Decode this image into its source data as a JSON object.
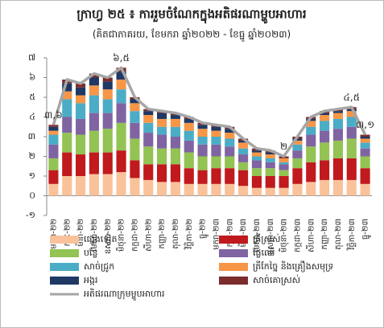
{
  "chart_data": {
    "type": "stacked-bar-line",
    "title": "ក្រាហ្វ ២៥ ៖ ការរួមចំណែកក្នុងអតិផរណាម្ហូបអាហារ",
    "subtitle": "(គិតជាភាគរយ, ខែមករា ឆ្នាំ២០២២ - ខែធ្នូ ឆ្នាំ២០២៣)",
    "categories": [
      "មករា-២២",
      "កុម្ភៈ-២២",
      "មីនា-២២",
      "មេសា-២២",
      "ឧសភា-២២",
      "មិថុនា-២២",
      "កក្កដា-២២",
      "សីហា-២២",
      "កញ្ញា-២២",
      "តុលា-២២",
      "វិច្ឆិកា-២២",
      "ធ្នូ-២២",
      "មករា-២៣",
      "កុម្ភៈ-២៣",
      "មីនា-២៣",
      "មេសា-២៣",
      "ឧសភា-២៣",
      "មិថុនា-២៣",
      "កក្កដា-២៣",
      "សីហា-២៣",
      "កញ្ញា-២៣",
      "តុលា-២៣",
      "វិច្ឆិកា-២៣",
      "ធ្នូ-២៣"
    ],
    "series": [
      {
        "name": "ផ្សេងទៀត",
        "color": "#f9c29a",
        "values": [
          0.6,
          1.0,
          1.0,
          1.1,
          1.1,
          1.2,
          0.9,
          0.8,
          0.7,
          0.7,
          0.6,
          0.6,
          0.6,
          0.6,
          0.5,
          0.4,
          0.4,
          0.4,
          0.6,
          0.7,
          0.8,
          0.8,
          0.8,
          0.6
        ]
      },
      {
        "name": "ត្រីស្រស់",
        "color": "#c0191e",
        "values": [
          0.7,
          1.2,
          1.1,
          1.1,
          1.1,
          1.1,
          0.9,
          0.8,
          0.9,
          0.9,
          0.8,
          0.7,
          0.8,
          0.8,
          0.8,
          0.6,
          0.6,
          0.6,
          0.8,
          1.0,
          1.0,
          1.1,
          1.1,
          0.8
        ]
      },
      {
        "name": "បន្លែ",
        "color": "#92c353",
        "values": [
          0.6,
          1.0,
          1.0,
          1.1,
          1.2,
          1.4,
          1.1,
          0.9,
          0.8,
          0.8,
          0.8,
          0.7,
          0.6,
          0.6,
          0.4,
          0.4,
          0.4,
          0.3,
          0.5,
          0.8,
          0.9,
          0.9,
          1.0,
          0.6
        ]
      },
      {
        "name": "ផ្លែឈើ",
        "color": "#8064a2",
        "values": [
          0.7,
          0.8,
          0.8,
          0.9,
          0.8,
          1.0,
          0.8,
          0.7,
          0.7,
          0.6,
          0.6,
          0.6,
          0.6,
          0.5,
          0.4,
          0.4,
          0.3,
          0.3,
          0.4,
          0.6,
          0.6,
          0.6,
          0.6,
          0.4
        ]
      },
      {
        "name": "សាច់ជ្រូក",
        "color": "#4bacc6",
        "values": [
          0.5,
          0.9,
          0.8,
          0.9,
          0.7,
          0.7,
          0.6,
          0.5,
          0.4,
          0.5,
          0.5,
          0.4,
          0.4,
          0.4,
          0.3,
          0.2,
          0.2,
          0.1,
          0.3,
          0.4,
          0.5,
          0.5,
          0.5,
          0.3
        ]
      },
      {
        "name": "ត្រីកែច្នៃ និងគ្រឿងសមុទ្រ",
        "color": "#f79646",
        "values": [
          0.2,
          0.4,
          0.4,
          0.5,
          0.5,
          0.5,
          0.4,
          0.4,
          0.4,
          0.4,
          0.4,
          0.4,
          0.3,
          0.3,
          0.3,
          0.2,
          0.2,
          0.2,
          0.2,
          0.3,
          0.3,
          0.3,
          0.3,
          0.2
        ]
      },
      {
        "name": "អង្ករ",
        "color": "#1f3864",
        "values": [
          0.2,
          0.4,
          0.4,
          0.4,
          0.4,
          0.4,
          0.2,
          0.2,
          0.3,
          0.2,
          0.2,
          0.2,
          0.2,
          0.2,
          0.1,
          0.1,
          0.1,
          0.0,
          0.1,
          0.1,
          0.1,
          0.1,
          0.1,
          0.1
        ]
      },
      {
        "name": "សាច់គោស្រស់",
        "color": "#7b2c2c",
        "values": [
          0.1,
          0.2,
          0.2,
          0.2,
          0.2,
          0.2,
          0.1,
          0.1,
          0.1,
          0.1,
          0.1,
          0.1,
          0.1,
          0.1,
          0.1,
          0.1,
          0.1,
          0.1,
          0.1,
          0.1,
          0.1,
          0.1,
          0.1,
          0.1
        ]
      },
      {
        "name": "អតិផរណាក្រុមម្ហូបអាហារ",
        "color": "#a6a6a6",
        "kind": "line",
        "values": [
          3.6,
          5.9,
          5.7,
          6.2,
          6.0,
          6.5,
          5.0,
          4.4,
          4.3,
          4.2,
          4.0,
          3.7,
          3.6,
          3.5,
          2.9,
          2.4,
          2.3,
          2.0,
          3.0,
          4.0,
          4.3,
          4.4,
          4.5,
          3.1
        ],
        "value_labels": [
          "៣,៦",
          null,
          null,
          null,
          null,
          "៦,៥",
          null,
          null,
          null,
          null,
          null,
          null,
          null,
          null,
          null,
          null,
          null,
          "២",
          null,
          null,
          null,
          null,
          "៤,៥",
          "៣,១"
        ]
      }
    ],
    "ylim": [
      -1,
      7
    ],
    "yticks": [
      {
        "value": -1,
        "label": "-១"
      },
      {
        "value": 0,
        "label": "០"
      },
      {
        "value": 1,
        "label": "១"
      },
      {
        "value": 2,
        "label": "២"
      },
      {
        "value": 3,
        "label": "៣"
      },
      {
        "value": 4,
        "label": "៤"
      },
      {
        "value": 5,
        "label": "៥"
      },
      {
        "value": 6,
        "label": "៦"
      },
      {
        "value": 7,
        "label": "៧"
      }
    ],
    "grid": false
  }
}
